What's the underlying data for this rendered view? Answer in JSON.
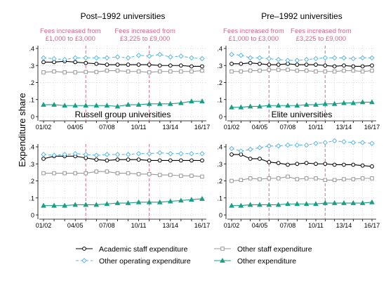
{
  "chart_data": {
    "type": "line",
    "ylabel": "Expenditure share",
    "x": [
      "01/02",
      "02/03",
      "03/04",
      "04/05",
      "05/06",
      "06/07",
      "07/08",
      "08/09",
      "09/10",
      "10/11",
      "11/12",
      "12/13",
      "13/14",
      "14/15",
      "15/16",
      "16/17"
    ],
    "x_tick_labels": [
      "01/02",
      "04/05",
      "07/08",
      "10/11",
      "13/14",
      "16/17"
    ],
    "y_tick_labels": [
      "0",
      ".1",
      ".2",
      ".3",
      ".4"
    ],
    "ylim": [
      0,
      0.4
    ],
    "grid": true,
    "legend_position": "bottom",
    "annotations": [
      {
        "x": "05/06",
        "text": "Fees increased from\n£1,000 to £3,000"
      },
      {
        "x": "11/12",
        "text": "Fees increased from\n£3,225 to £9,000"
      }
    ],
    "series_styles": [
      {
        "name": "Academic staff expenditure",
        "color": "#000000",
        "marker": "circle",
        "dash": ""
      },
      {
        "name": "Other staff expenditure",
        "color": "#999999",
        "marker": "square",
        "dash": ""
      },
      {
        "name": "Other operating expenditure",
        "color": "#5bb8e6",
        "marker": "diamond",
        "dash": "4,3"
      },
      {
        "name": "Other expenditure",
        "color": "#1a9e84",
        "marker": "triangle",
        "dash": ""
      }
    ],
    "panels": [
      {
        "title": "Post–1992 universities",
        "series": [
          {
            "name": "Academic staff expenditure",
            "values": [
              0.32,
              0.32,
              0.325,
              0.32,
              0.315,
              0.31,
              0.305,
              0.305,
              0.305,
              0.305,
              0.305,
              0.3,
              0.3,
              0.3,
              0.295,
              0.295
            ]
          },
          {
            "name": "Other staff expenditure",
            "values": [
              0.26,
              0.265,
              0.26,
              0.26,
              0.262,
              0.262,
              0.27,
              0.27,
              0.265,
              0.265,
              0.26,
              0.265,
              0.265,
              0.265,
              0.265,
              0.27
            ]
          },
          {
            "name": "Other operating expenditure",
            "values": [
              0.345,
              0.34,
              0.335,
              0.345,
              0.345,
              0.345,
              0.345,
              0.35,
              0.345,
              0.36,
              0.355,
              0.365,
              0.35,
              0.355,
              0.345,
              0.34
            ]
          },
          {
            "name": "Other expenditure",
            "values": [
              0.07,
              0.07,
              0.065,
              0.065,
              0.065,
              0.065,
              0.065,
              0.06,
              0.07,
              0.07,
              0.075,
              0.075,
              0.075,
              0.08,
              0.09,
              0.09
            ]
          }
        ]
      },
      {
        "title": "Pre–1992 universities",
        "series": [
          {
            "name": "Academic staff expenditure",
            "values": [
              0.31,
              0.31,
              0.315,
              0.31,
              0.305,
              0.305,
              0.31,
              0.305,
              0.305,
              0.305,
              0.3,
              0.295,
              0.3,
              0.295,
              0.295,
              0.3
            ]
          },
          {
            "name": "Other staff expenditure",
            "values": [
              0.265,
              0.265,
              0.27,
              0.27,
              0.275,
              0.275,
              0.275,
              0.27,
              0.27,
              0.265,
              0.265,
              0.265,
              0.27,
              0.27,
              0.265,
              0.27
            ]
          },
          {
            "name": "Other operating expenditure",
            "values": [
              0.365,
              0.36,
              0.345,
              0.345,
              0.34,
              0.335,
              0.33,
              0.33,
              0.335,
              0.34,
              0.345,
              0.345,
              0.345,
              0.34,
              0.345,
              0.345
            ]
          },
          {
            "name": "Other expenditure",
            "values": [
              0.055,
              0.055,
              0.06,
              0.06,
              0.065,
              0.065,
              0.065,
              0.065,
              0.07,
              0.07,
              0.075,
              0.075,
              0.08,
              0.08,
              0.085,
              0.085
            ]
          }
        ]
      },
      {
        "title": "Russell group universities",
        "series": [
          {
            "name": "Academic staff expenditure",
            "values": [
              0.33,
              0.345,
              0.345,
              0.345,
              0.335,
              0.325,
              0.32,
              0.325,
              0.325,
              0.325,
              0.32,
              0.32,
              0.32,
              0.32,
              0.32,
              0.32
            ]
          },
          {
            "name": "Other staff expenditure",
            "values": [
              0.245,
              0.245,
              0.245,
              0.245,
              0.245,
              0.255,
              0.255,
              0.245,
              0.245,
              0.24,
              0.24,
              0.235,
              0.235,
              0.23,
              0.23,
              0.225
            ]
          },
          {
            "name": "Other operating expenditure",
            "values": [
              0.355,
              0.35,
              0.355,
              0.36,
              0.355,
              0.35,
              0.355,
              0.355,
              0.355,
              0.36,
              0.36,
              0.365,
              0.36,
              0.36,
              0.36,
              0.36
            ]
          },
          {
            "name": "Other expenditure",
            "values": [
              0.055,
              0.055,
              0.055,
              0.06,
              0.06,
              0.06,
              0.065,
              0.07,
              0.07,
              0.075,
              0.075,
              0.075,
              0.08,
              0.085,
              0.09,
              0.095
            ]
          }
        ]
      },
      {
        "title": "Elite universities",
        "series": [
          {
            "name": "Academic staff expenditure",
            "values": [
              0.355,
              0.355,
              0.33,
              0.33,
              0.31,
              0.305,
              0.295,
              0.3,
              0.305,
              0.3,
              0.3,
              0.295,
              0.295,
              0.295,
              0.29,
              0.285
            ]
          },
          {
            "name": "Other staff expenditure",
            "values": [
              0.2,
              0.205,
              0.215,
              0.21,
              0.215,
              0.215,
              0.225,
              0.21,
              0.215,
              0.215,
              0.205,
              0.205,
              0.21,
              0.21,
              0.215,
              0.215
            ]
          },
          {
            "name": "Other operating expenditure",
            "values": [
              0.39,
              0.375,
              0.385,
              0.395,
              0.405,
              0.405,
              0.41,
              0.41,
              0.41,
              0.42,
              0.425,
              0.435,
              0.43,
              0.425,
              0.425,
              0.42
            ]
          },
          {
            "name": "Other expenditure",
            "values": [
              0.055,
              0.055,
              0.06,
              0.06,
              0.06,
              0.06,
              0.065,
              0.065,
              0.065,
              0.065,
              0.07,
              0.07,
              0.07,
              0.07,
              0.07,
              0.075
            ]
          }
        ]
      }
    ]
  }
}
